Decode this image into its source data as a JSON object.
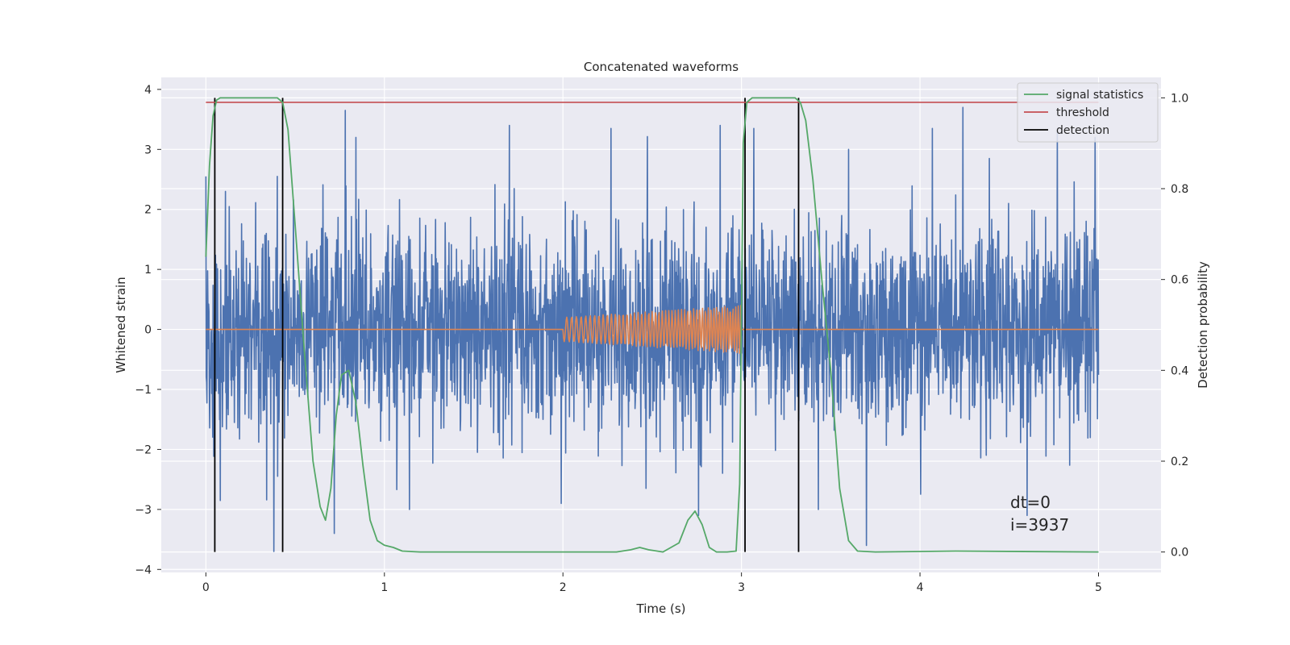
{
  "chart_data": {
    "type": "line",
    "title": "Concatenated waveforms",
    "xlabel": "Time (s)",
    "ylabel": "Whitened strain",
    "y2label": "Detection probability",
    "xlim": [
      -0.25,
      5.35
    ],
    "ylim": [
      -4.05,
      4.2
    ],
    "y2lim": [
      -0.045,
      1.045
    ],
    "xticks": [
      0,
      1,
      2,
      3,
      4,
      5
    ],
    "yticks": [
      -4,
      -3,
      -2,
      -1,
      0,
      1,
      2,
      3,
      4
    ],
    "y2ticks": [
      0.0,
      0.2,
      0.4,
      0.6,
      0.8,
      1.0
    ],
    "y2ticklabels": [
      "0.0",
      "0.2",
      "0.4",
      "0.6",
      "0.8",
      "1.0"
    ],
    "grid": true,
    "legend_position": "top-right",
    "annotation": [
      "dt=0",
      "i=3937"
    ],
    "colors": {
      "strain": "#4c72b0",
      "template": "#dd8452",
      "signal_statistics": "#55a868",
      "threshold": "#c44e52",
      "detection": "#000000",
      "background": "#eaeaf2",
      "grid": "#ffffff"
    },
    "series": [
      {
        "name": "",
        "axis": "left",
        "description_kind": "noise",
        "x_range": [
          0,
          5
        ],
        "approx_peak_positive": [
          [
            0.0,
            2.55
          ],
          [
            0.11,
            2.3
          ],
          [
            0.4,
            2.55
          ],
          [
            0.78,
            3.65
          ],
          [
            0.84,
            3.2
          ],
          [
            1.7,
            3.4
          ],
          [
            2.27,
            3.35
          ],
          [
            2.88,
            3.4
          ],
          [
            3.07,
            3.35
          ],
          [
            3.6,
            3.0
          ],
          [
            4.07,
            3.35
          ],
          [
            4.24,
            3.7
          ],
          [
            4.77,
            3.3
          ],
          [
            4.98,
            3.2
          ]
        ],
        "approx_peak_negative": [
          [
            0.08,
            -2.85
          ],
          [
            0.38,
            -3.7
          ],
          [
            0.72,
            -3.4
          ],
          [
            1.14,
            -3.0
          ],
          [
            1.99,
            -2.9
          ],
          [
            2.76,
            -3.1
          ],
          [
            3.43,
            -3.0
          ],
          [
            3.7,
            -3.6
          ],
          [
            4.6,
            -3.1
          ]
        ]
      },
      {
        "name": "",
        "axis": "left",
        "description_kind": "chirp",
        "x_range": [
          0,
          5
        ],
        "chirp_start": 2.0,
        "chirp_end": 3.0,
        "amplitude_start": 0.2,
        "amplitude_end": 0.4
      },
      {
        "name": "signal statistics",
        "axis": "right",
        "x": [
          0.0,
          0.02,
          0.04,
          0.06,
          0.08,
          0.1,
          0.2,
          0.3,
          0.4,
          0.43,
          0.46,
          0.5,
          0.55,
          0.6,
          0.64,
          0.67,
          0.7,
          0.73,
          0.76,
          0.8,
          0.84,
          0.88,
          0.92,
          0.96,
          1.0,
          1.05,
          1.1,
          1.2,
          2.3,
          2.38,
          2.43,
          2.48,
          2.56,
          2.65,
          2.7,
          2.74,
          2.78,
          2.82,
          2.86,
          2.92,
          2.97,
          2.99,
          3.01,
          3.03,
          3.06,
          3.1,
          3.2,
          3.3,
          3.33,
          3.36,
          3.4,
          3.45,
          3.5,
          3.55,
          3.6,
          3.65,
          3.75,
          4.2,
          5.0
        ],
        "y": [
          0.65,
          0.85,
          0.96,
          0.995,
          1.0,
          1.0,
          1.0,
          1.0,
          1.0,
          0.99,
          0.93,
          0.72,
          0.45,
          0.2,
          0.1,
          0.07,
          0.14,
          0.3,
          0.39,
          0.4,
          0.33,
          0.19,
          0.07,
          0.025,
          0.015,
          0.01,
          0.002,
          0.0,
          0.0,
          0.005,
          0.01,
          0.005,
          0.0,
          0.02,
          0.07,
          0.09,
          0.06,
          0.01,
          0.0,
          0.0,
          0.002,
          0.15,
          0.9,
          0.99,
          1.0,
          1.0,
          1.0,
          1.0,
          0.99,
          0.95,
          0.82,
          0.6,
          0.4,
          0.14,
          0.025,
          0.002,
          0.0,
          0.002,
          0.0
        ]
      },
      {
        "name": "threshold",
        "axis": "right",
        "x": [
          0,
          5
        ],
        "y": [
          0.99,
          0.99
        ]
      },
      {
        "name": "detection",
        "axis": "right",
        "x_positions": [
          0.05,
          0.43,
          3.02,
          3.32
        ],
        "y_range": [
          0.0,
          1.0
        ]
      }
    ]
  }
}
